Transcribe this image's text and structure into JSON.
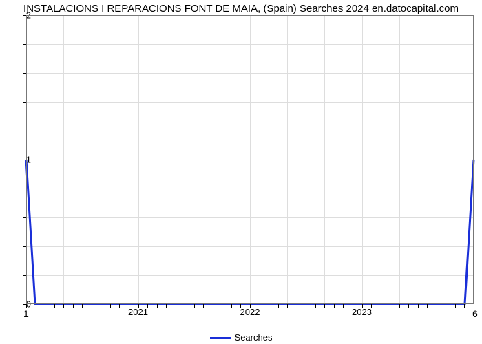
{
  "chart": {
    "type": "line",
    "title": "INSTALACIONS I REPARACIONS FONT DE MAIA,  (Spain) Searches 2024 en.datocapital.com",
    "title_fontsize": 15,
    "title_color": "#000000",
    "background_color": "#ffffff",
    "plot_border_color": "#777777",
    "grid_color": "#dddddd",
    "series_color": "#1a2fd8",
    "series_stroke_width": 3,
    "x": {
      "min": 2020.0,
      "max": 2024.0,
      "major_ticks": [
        2021,
        2022,
        2023
      ],
      "minor_tick_count": 48,
      "label_fontsize": 13
    },
    "y": {
      "min": 0,
      "max": 2,
      "major_ticks": [
        0,
        1,
        2
      ],
      "minor_tick_count": 10,
      "label_fontsize": 13
    },
    "vgrid_count": 12,
    "hgrid_count": 10,
    "corner_bottom_left": "1",
    "corner_bottom_right": "6",
    "data": {
      "x": [
        2020.0,
        2020.08,
        2023.92,
        2024.0
      ],
      "y": [
        1.0,
        0.0,
        0.0,
        1.0
      ]
    },
    "legend": {
      "label": "Searches",
      "fontsize": 13,
      "line_color": "#1a2fd8"
    }
  }
}
